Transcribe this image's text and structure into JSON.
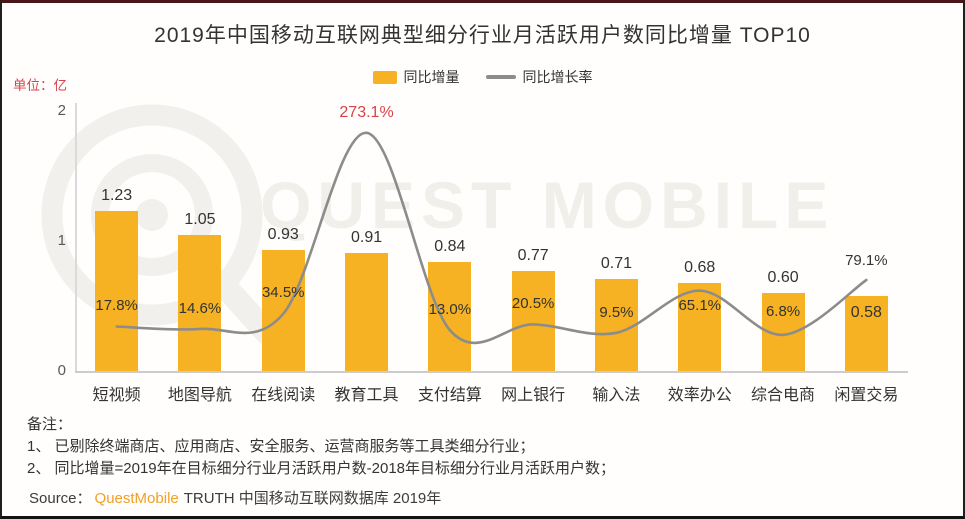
{
  "frame": {
    "title": "2019年中国移动互联网典型细分行业月活跃用户数同比增量 TOP10",
    "unit_label": "单位：亿",
    "watermark_text": "QUEST MOBILE"
  },
  "legend": {
    "bar_label": "同比增量",
    "line_label": "同比增长率"
  },
  "colors": {
    "bar": "#f6b222",
    "line": "#8c8c8c",
    "accent_red": "#d6434a",
    "brand_orange": "#f0a127",
    "watermark": "#f1efea"
  },
  "chart_data": {
    "type": "bar+line combo",
    "title": "2019年中国移动互联网典型细分行业月活跃用户数同比增量 TOP10",
    "categories": [
      "短视频",
      "地图导航",
      "在线阅读",
      "教育工具",
      "支付结算",
      "网上银行",
      "输入法",
      "效率办公",
      "综合电商",
      "闲置交易"
    ],
    "series": [
      {
        "name": "同比增量",
        "type": "bar",
        "unit": "亿",
        "values": [
          1.23,
          1.05,
          0.93,
          0.91,
          0.84,
          0.77,
          0.71,
          0.68,
          0.6,
          0.58
        ],
        "labels": [
          "1.23",
          "1.05",
          "0.93",
          "0.91",
          "0.84",
          "0.77",
          "0.71",
          "0.68",
          "0.60",
          "0.58"
        ]
      },
      {
        "name": "同比增长率",
        "type": "line",
        "unit": "%",
        "values": [
          17.8,
          14.6,
          34.5,
          273.1,
          13.0,
          20.5,
          9.5,
          65.1,
          6.8,
          79.1
        ],
        "labels": [
          "17.8%",
          "14.6%",
          "34.5%",
          "273.1%",
          "13.0%",
          "20.5%",
          "9.5%",
          "65.1%",
          "6.8%",
          "79.1%"
        ],
        "highlight_index": 3
      }
    ],
    "y_axis": {
      "label": "单位：亿",
      "ticks": [
        0,
        1,
        2
      ],
      "min": 0,
      "max": 2
    },
    "legend_position": "top-center",
    "grid": false
  },
  "notes": {
    "heading": "备注：",
    "items": [
      "1、 已剔除终端商店、应用商店、安全服务、运营商服务等工具类细分行业；",
      "2、 同比增量=2019年在目标细分行业月活跃用户数-2018年目标细分行业月活跃用户数；"
    ]
  },
  "source": {
    "prefix": "Source：",
    "brand": "QuestMobile",
    "suffix": "TRUTH 中国移动互联网数据库 2019年"
  }
}
